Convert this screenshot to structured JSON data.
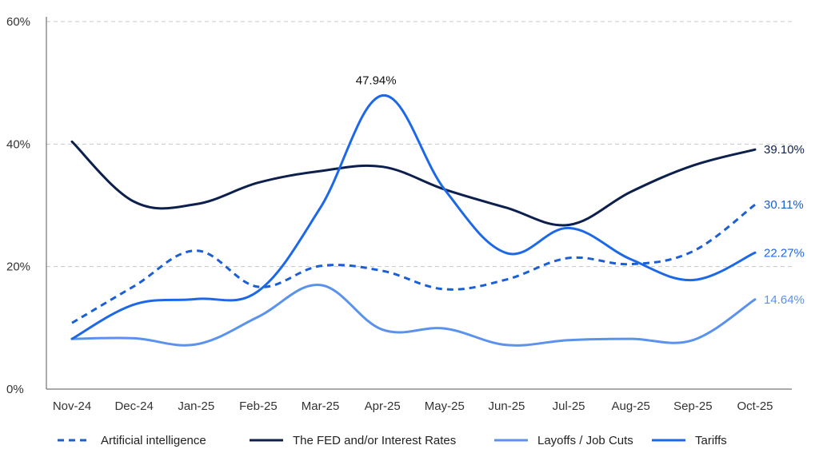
{
  "chart_data": {
    "type": "line",
    "categories": [
      "Nov-24",
      "Dec-24",
      "Jan-25",
      "Feb-25",
      "Mar-25",
      "Apr-25",
      "May-25",
      "Jun-25",
      "Jul-25",
      "Aug-25",
      "Sep-25",
      "Oct-25"
    ],
    "ylim": [
      0,
      60
    ],
    "y_ticks": [
      0,
      20,
      40,
      60
    ],
    "y_tick_labels": [
      "0%",
      "20%",
      "40%",
      "60%"
    ],
    "grid": "horizontal-dashed",
    "legend_position": "bottom",
    "series": [
      {
        "name": "Artificial intelligence",
        "style": "dashed",
        "color": "#1a5fd6",
        "values": [
          10.8,
          16.8,
          22.6,
          16.7,
          20.1,
          19.3,
          16.3,
          17.9,
          21.4,
          20.4,
          22.5,
          30.11
        ],
        "end_label": "30.11%"
      },
      {
        "name": "The FED and/or Interest Rates",
        "style": "solid",
        "color": "#0d1f4d",
        "values": [
          40.4,
          30.6,
          30.2,
          33.7,
          35.6,
          36.3,
          32.6,
          29.6,
          26.8,
          32.2,
          36.5,
          39.1
        ],
        "end_label": "39.10%"
      },
      {
        "name": "Layoffs / Job Cuts",
        "style": "solid",
        "color": "#5a92ec",
        "values": [
          8.2,
          8.3,
          7.3,
          11.8,
          17.0,
          9.7,
          9.9,
          7.2,
          8.0,
          8.2,
          8.0,
          14.64
        ],
        "end_label": "14.64%"
      },
      {
        "name": "Tariffs",
        "style": "solid",
        "color": "#1d68e6",
        "values": [
          8.2,
          13.8,
          14.7,
          16.0,
          29.6,
          47.94,
          32.6,
          22.2,
          26.3,
          21.2,
          17.8,
          22.27
        ],
        "end_label": "22.27%",
        "peak_label": "47.94%"
      }
    ]
  }
}
